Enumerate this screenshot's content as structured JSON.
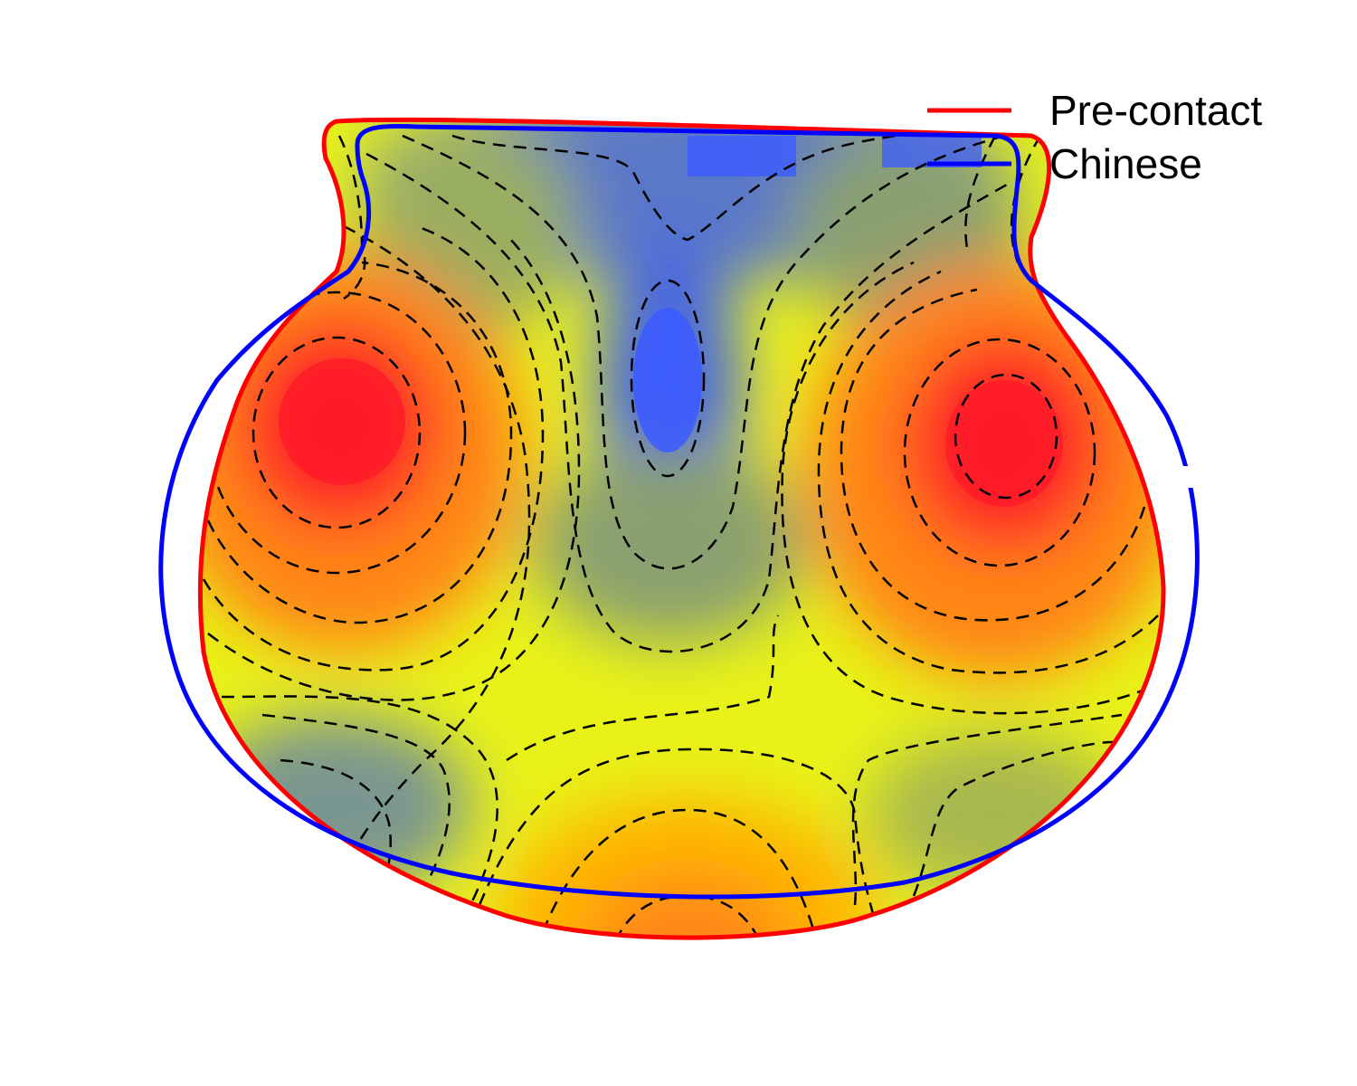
{
  "colors": {
    "background": "#ffffff",
    "precontact_outline": "#ff0000",
    "chinese_outline": "#0000ff",
    "contour_line": "#000000"
  },
  "heatmap_palette": [
    "#3b5bff",
    "#5a78c8",
    "#7a9690",
    "#9aae60",
    "#c4d63a",
    "#e8f218",
    "#ffe800",
    "#ffb300",
    "#ff8514",
    "#ff5a1e",
    "#ff1a28"
  ],
  "legend": {
    "position": "top-right",
    "entries": [
      {
        "label": "Pre-contact",
        "color": "#ff0000"
      },
      {
        "label": "Chinese",
        "color": "#0000ff"
      }
    ]
  }
}
